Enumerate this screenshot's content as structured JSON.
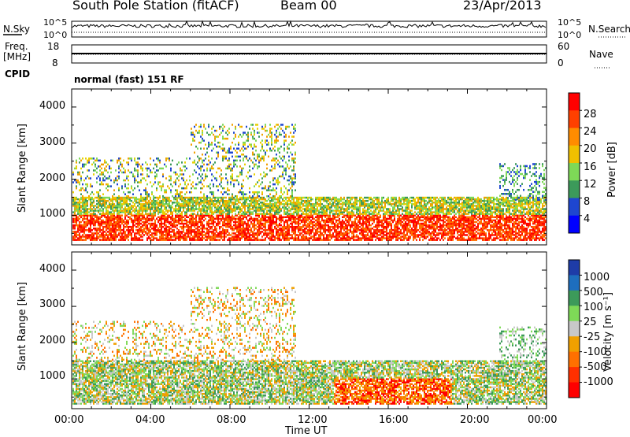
{
  "header": {
    "station": "South Pole Station (fitACF)",
    "beam": "Beam 00",
    "date": "23/Apr/2013"
  },
  "nsky_panel": {
    "left_label": "N.Sky",
    "right_label": "N.Search",
    "ticks": [
      "10^5",
      "10^0"
    ]
  },
  "freq_panel": {
    "left_label_top": "Freq.",
    "left_label_bottom": "[MHz]",
    "left_ticks": [
      "18",
      "8"
    ],
    "right_label": "Nave",
    "right_ticks": [
      "60",
      "0"
    ]
  },
  "cpid": {
    "label": "CPID",
    "text": "normal (fast) 151 RF"
  },
  "chart_data": [
    {
      "type": "heatmap",
      "name": "Power",
      "ylabel": "Slant Range [km]",
      "y_ticks": [
        "4000",
        "3000",
        "2000",
        "1000"
      ],
      "ylim": [
        180,
        4500
      ],
      "xlim": [
        "00:00",
        "24:00"
      ],
      "colorbar_label": "Power [dB]",
      "colorbar_ticks": [
        "28",
        "24",
        "20",
        "16",
        "12",
        "8",
        "4"
      ],
      "colorbar_colors": [
        "#ff0000",
        "#ff4000",
        "#ff8c00",
        "#f0c000",
        "#7ed957",
        "#3c9a5a",
        "#1e46d0",
        "#0000ff"
      ]
    },
    {
      "type": "heatmap",
      "name": "Velocity",
      "ylabel": "Slant Range [km]",
      "y_ticks": [
        "4000",
        "3000",
        "2000",
        "1000"
      ],
      "ylim": [
        180,
        4500
      ],
      "xlim": [
        "00:00",
        "24:00"
      ],
      "colorbar_label": "Velocity [m s⁻¹]",
      "colorbar_ticks": [
        "1000",
        "500",
        "100",
        "25",
        "-25",
        "-100",
        "-500",
        "-1000"
      ],
      "colorbar_colors": [
        "#1e3ca8",
        "#1e6ebe",
        "#3c9a5a",
        "#7ed957",
        "#c8c8c8",
        "#f0a000",
        "#ff7000",
        "#ff3000",
        "#ff0000"
      ]
    }
  ],
  "x_axis": {
    "ticks": [
      "00:00",
      "04:00",
      "08:00",
      "12:00",
      "16:00",
      "20:00",
      "00:00"
    ],
    "label": "Time UT"
  }
}
